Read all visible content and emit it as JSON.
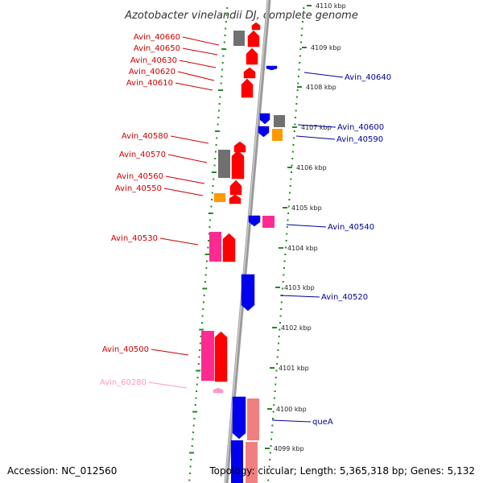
{
  "title": "Azotobacter vinelandii DJ, complete genome",
  "accession": "Accession: NC_012560",
  "topology": "Topology: circular; Length: 5,365,318 bp; Genes: 5,132",
  "colors": {
    "red": "#ff0000",
    "blue": "#0000ee",
    "gray": "#707070",
    "orange": "#ff9900",
    "magenta": "#ff2a90",
    "pink": "#ff99cc",
    "salmon": "#f08080",
    "backbone": "#999999",
    "ticks": "#228822",
    "label_red": "#cc0000",
    "label_blue": "#000099",
    "label_pink": "#ff99bb"
  },
  "kbp_marks": [
    "4110 kbp",
    "4109 kbp",
    "4108 kbp",
    "4107 kbp",
    "4106 kbp",
    "4105 kbp",
    "4104 kbp",
    "4103 kbp",
    "4102 kbp",
    "4101 kbp",
    "4100 kbp",
    "4099 kbp"
  ],
  "left_labels": [
    "Avin_40660",
    "Avin_40650",
    "Avin_40630",
    "Avin_40620",
    "Avin_40610",
    "Avin_40580",
    "Avin_40570",
    "Avin_40560",
    "Avin_40550",
    "Avin_40530",
    "Avin_40500",
    "Avin_60280"
  ],
  "right_labels": [
    "Avin_40640",
    "Avin_40600",
    "Avin_40590",
    "Avin_40540",
    "Avin_40520",
    "queA"
  ]
}
